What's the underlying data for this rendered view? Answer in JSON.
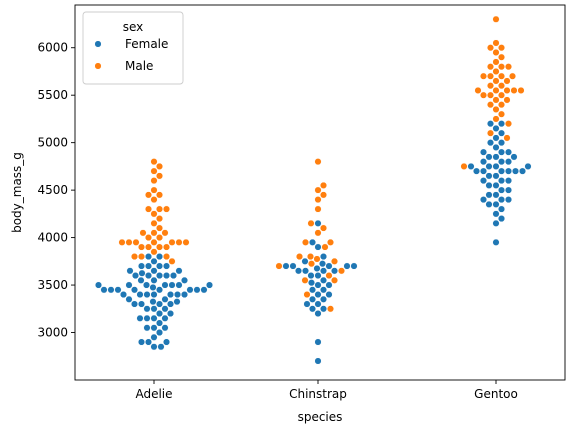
{
  "chart_data": {
    "type": "scatter",
    "subtype": "swarm",
    "xlabel": "species",
    "ylabel": "body_mass_g",
    "categories": [
      "Adelie",
      "Chinstrap",
      "Gentoo"
    ],
    "ylim": [
      2500,
      6450
    ],
    "yticks": [
      3000,
      3500,
      4000,
      4500,
      5000,
      5500,
      6000
    ],
    "grid": false,
    "legend": {
      "title": "sex",
      "placement": "top-left",
      "entries": [
        {
          "label": "Female",
          "color": "#1f77b4"
        },
        {
          "label": "Male",
          "color": "#ff7f0e"
        }
      ]
    },
    "series": [
      {
        "name": "Female",
        "color": "#1f77b4",
        "values": {
          "Adelie": [
            2850,
            2850,
            2900,
            2900,
            2900,
            2950,
            3000,
            3050,
            3050,
            3050,
            3100,
            3150,
            3150,
            3150,
            3150,
            3200,
            3200,
            3250,
            3250,
            3250,
            3300,
            3300,
            3300,
            3300,
            3325,
            3325,
            3350,
            3350,
            3400,
            3400,
            3400,
            3400,
            3400,
            3400,
            3400,
            3450,
            3450,
            3450,
            3450,
            3450,
            3450,
            3450,
            3450,
            3475,
            3500,
            3500,
            3500,
            3500,
            3500,
            3500,
            3500,
            3550,
            3550,
            3550,
            3600,
            3600,
            3600,
            3600,
            3600,
            3625,
            3650,
            3650,
            3650,
            3700,
            3700,
            3700,
            3700,
            3750,
            3800,
            3800
          ],
          "Chinstrap": [
            2700,
            2900,
            3200,
            3250,
            3250,
            3300,
            3300,
            3350,
            3350,
            3400,
            3400,
            3450,
            3450,
            3500,
            3500,
            3525,
            3550,
            3600,
            3600,
            3650,
            3650,
            3650,
            3650,
            3675,
            3700,
            3700,
            3700,
            3700,
            3700,
            3725,
            3750,
            3800,
            3900,
            3950,
            4150
          ],
          "Gentoo": [
            3950,
            4150,
            4200,
            4250,
            4300,
            4350,
            4350,
            4400,
            4400,
            4400,
            4450,
            4450,
            4500,
            4500,
            4550,
            4550,
            4600,
            4600,
            4600,
            4650,
            4650,
            4700,
            4700,
            4700,
            4700,
            4700,
            4700,
            4750,
            4750,
            4750,
            4750,
            4800,
            4800,
            4800,
            4850,
            4850,
            4850,
            4900,
            4900,
            4900,
            4950,
            5000,
            5000,
            5050,
            5100,
            5150,
            5200,
            5200
          ]
        }
      },
      {
        "name": "Male",
        "color": "#ff7f0e",
        "values": {
          "Adelie": [
            3750,
            3800,
            3800,
            3800,
            3850,
            3900,
            3900,
            3900,
            3900,
            3950,
            3950,
            3950,
            3950,
            3950,
            3950,
            3950,
            4000,
            4000,
            4050,
            4050,
            4050,
            4100,
            4150,
            4200,
            4250,
            4300,
            4300,
            4300,
            4400,
            4450,
            4450,
            4500,
            4600,
            4650,
            4700,
            4750,
            4800
          ],
          "Chinstrap": [
            3250,
            3400,
            3550,
            3550,
            3600,
            3650,
            3700,
            3725,
            3750,
            3775,
            3800,
            3800,
            3900,
            3950,
            3950,
            4050,
            4100,
            4150,
            4300,
            4400,
            4450,
            4500,
            4550,
            4800
          ],
          "Gentoo": [
            4750,
            5050,
            5100,
            5200,
            5250,
            5300,
            5350,
            5400,
            5400,
            5450,
            5450,
            5500,
            5500,
            5500,
            5550,
            5550,
            5550,
            5550,
            5550,
            5600,
            5600,
            5650,
            5650,
            5700,
            5700,
            5700,
            5700,
            5750,
            5800,
            5800,
            5800,
            5850,
            5900,
            5950,
            6000,
            6000,
            6050,
            6300
          ]
        }
      }
    ]
  }
}
